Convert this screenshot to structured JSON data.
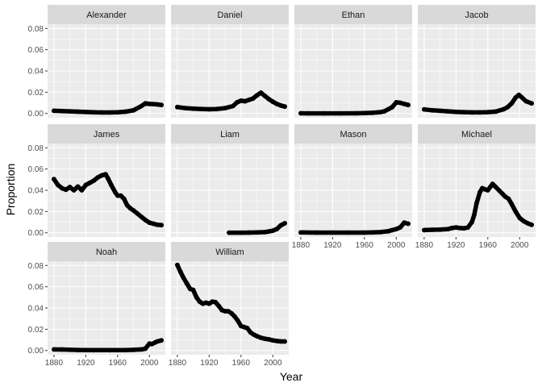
{
  "chart_data": {
    "type": "line",
    "title": "",
    "xlabel": "Year",
    "ylabel": "Proportion",
    "xlim": [
      1872,
      2020
    ],
    "ylim": [
      -0.004,
      0.084
    ],
    "x_ticks": [
      1880,
      1920,
      1960,
      2000
    ],
    "y_ticks": [
      0.0,
      0.02,
      0.04,
      0.06,
      0.08
    ],
    "y_tick_labels": [
      "0.00",
      "0.02",
      "0.04",
      "0.06",
      "0.08"
    ],
    "x_tick_labels": [
      "1880",
      "1920",
      "1960",
      "2000"
    ],
    "facet_ncol": 4,
    "grid": true,
    "panel_background": "#ebebeb",
    "strip_background": "#d9d9d9",
    "grid_color": "#ffffff",
    "line_color": "#000000",
    "series": [
      {
        "name": "Alexander",
        "points": [
          [
            1880,
            0.0025
          ],
          [
            1890,
            0.0022
          ],
          [
            1900,
            0.002
          ],
          [
            1910,
            0.0017
          ],
          [
            1920,
            0.0014
          ],
          [
            1930,
            0.0011
          ],
          [
            1940,
            0.0009
          ],
          [
            1950,
            0.0009
          ],
          [
            1960,
            0.0011
          ],
          [
            1970,
            0.0017
          ],
          [
            1980,
            0.003
          ],
          [
            1990,
            0.007
          ],
          [
            1995,
            0.0095
          ],
          [
            2000,
            0.009
          ],
          [
            2005,
            0.0088
          ],
          [
            2010,
            0.0085
          ],
          [
            2015,
            0.008
          ]
        ]
      },
      {
        "name": "Daniel",
        "points": [
          [
            1880,
            0.006
          ],
          [
            1890,
            0.005
          ],
          [
            1900,
            0.0045
          ],
          [
            1910,
            0.0042
          ],
          [
            1920,
            0.004
          ],
          [
            1930,
            0.0042
          ],
          [
            1940,
            0.005
          ],
          [
            1950,
            0.007
          ],
          [
            1955,
            0.0105
          ],
          [
            1960,
            0.012
          ],
          [
            1965,
            0.0115
          ],
          [
            1970,
            0.0128
          ],
          [
            1975,
            0.014
          ],
          [
            1980,
            0.017
          ],
          [
            1985,
            0.0195
          ],
          [
            1990,
            0.0165
          ],
          [
            1995,
            0.0135
          ],
          [
            2000,
            0.011
          ],
          [
            2005,
            0.009
          ],
          [
            2010,
            0.0075
          ],
          [
            2015,
            0.0065
          ]
        ]
      },
      {
        "name": "Ethan",
        "points": [
          [
            1880,
            0.0002
          ],
          [
            1890,
            0.0001
          ],
          [
            1910,
            0.0001
          ],
          [
            1930,
            0.0001
          ],
          [
            1950,
            0.0002
          ],
          [
            1960,
            0.0003
          ],
          [
            1970,
            0.0006
          ],
          [
            1980,
            0.0012
          ],
          [
            1985,
            0.002
          ],
          [
            1990,
            0.004
          ],
          [
            1995,
            0.006
          ],
          [
            2000,
            0.0105
          ],
          [
            2005,
            0.01
          ],
          [
            2010,
            0.009
          ],
          [
            2015,
            0.008
          ]
        ]
      },
      {
        "name": "Jacob",
        "points": [
          [
            1880,
            0.0038
          ],
          [
            1890,
            0.003
          ],
          [
            1900,
            0.0025
          ],
          [
            1910,
            0.002
          ],
          [
            1920,
            0.0015
          ],
          [
            1930,
            0.0012
          ],
          [
            1940,
            0.001
          ],
          [
            1950,
            0.001
          ],
          [
            1960,
            0.0012
          ],
          [
            1970,
            0.0018
          ],
          [
            1980,
            0.004
          ],
          [
            1985,
            0.006
          ],
          [
            1990,
            0.0095
          ],
          [
            1995,
            0.015
          ],
          [
            1999,
            0.0175
          ],
          [
            2003,
            0.015
          ],
          [
            2008,
            0.0115
          ],
          [
            2015,
            0.0095
          ]
        ]
      },
      {
        "name": "James",
        "points": [
          [
            1880,
            0.0505
          ],
          [
            1885,
            0.045
          ],
          [
            1890,
            0.042
          ],
          [
            1895,
            0.0405
          ],
          [
            1900,
            0.043
          ],
          [
            1905,
            0.04
          ],
          [
            1910,
            0.0435
          ],
          [
            1915,
            0.04
          ],
          [
            1920,
            0.045
          ],
          [
            1925,
            0.047
          ],
          [
            1930,
            0.049
          ],
          [
            1935,
            0.052
          ],
          [
            1940,
            0.054
          ],
          [
            1945,
            0.055
          ],
          [
            1948,
            0.051
          ],
          [
            1952,
            0.045
          ],
          [
            1957,
            0.038
          ],
          [
            1960,
            0.035
          ],
          [
            1964,
            0.035
          ],
          [
            1968,
            0.032
          ],
          [
            1972,
            0.026
          ],
          [
            1976,
            0.023
          ],
          [
            1980,
            0.021
          ],
          [
            1985,
            0.018
          ],
          [
            1990,
            0.015
          ],
          [
            1995,
            0.012
          ],
          [
            2000,
            0.0095
          ],
          [
            2005,
            0.0085
          ],
          [
            2010,
            0.0075
          ],
          [
            2015,
            0.0072
          ]
        ]
      },
      {
        "name": "Liam",
        "points": [
          [
            1945,
            0.0001
          ],
          [
            1960,
            0.0001
          ],
          [
            1970,
            0.0002
          ],
          [
            1980,
            0.0003
          ],
          [
            1990,
            0.0006
          ],
          [
            1995,
            0.0012
          ],
          [
            2000,
            0.002
          ],
          [
            2005,
            0.0035
          ],
          [
            2010,
            0.007
          ],
          [
            2015,
            0.009
          ]
        ]
      },
      {
        "name": "Mason",
        "points": [
          [
            1880,
            0.0003
          ],
          [
            1900,
            0.0002
          ],
          [
            1920,
            0.0002
          ],
          [
            1940,
            0.0002
          ],
          [
            1960,
            0.0002
          ],
          [
            1970,
            0.0003
          ],
          [
            1980,
            0.0006
          ],
          [
            1990,
            0.0015
          ],
          [
            1995,
            0.0025
          ],
          [
            2000,
            0.0035
          ],
          [
            2005,
            0.005
          ],
          [
            2010,
            0.0095
          ],
          [
            2015,
            0.0085
          ]
        ]
      },
      {
        "name": "Michael",
        "points": [
          [
            1880,
            0.0025
          ],
          [
            1890,
            0.0028
          ],
          [
            1900,
            0.003
          ],
          [
            1910,
            0.0035
          ],
          [
            1915,
            0.0045
          ],
          [
            1920,
            0.005
          ],
          [
            1925,
            0.0045
          ],
          [
            1930,
            0.0042
          ],
          [
            1935,
            0.005
          ],
          [
            1940,
            0.01
          ],
          [
            1943,
            0.017
          ],
          [
            1946,
            0.028
          ],
          [
            1950,
            0.038
          ],
          [
            1953,
            0.042
          ],
          [
            1956,
            0.041
          ],
          [
            1960,
            0.04
          ],
          [
            1963,
            0.043
          ],
          [
            1966,
            0.046
          ],
          [
            1970,
            0.043
          ],
          [
            1974,
            0.04
          ],
          [
            1978,
            0.037
          ],
          [
            1982,
            0.034
          ],
          [
            1986,
            0.032
          ],
          [
            1990,
            0.027
          ],
          [
            1995,
            0.02
          ],
          [
            2000,
            0.014
          ],
          [
            2005,
            0.011
          ],
          [
            2010,
            0.009
          ],
          [
            2015,
            0.0075
          ]
        ]
      },
      {
        "name": "Noah",
        "points": [
          [
            1880,
            0.001
          ],
          [
            1890,
            0.0009
          ],
          [
            1900,
            0.0007
          ],
          [
            1910,
            0.0005
          ],
          [
            1920,
            0.0004
          ],
          [
            1930,
            0.0003
          ],
          [
            1940,
            0.0003
          ],
          [
            1950,
            0.0003
          ],
          [
            1960,
            0.0003
          ],
          [
            1970,
            0.0004
          ],
          [
            1980,
            0.0006
          ],
          [
            1990,
            0.001
          ],
          [
            1995,
            0.0018
          ],
          [
            2000,
            0.0065
          ],
          [
            2003,
            0.006
          ],
          [
            2007,
            0.0075
          ],
          [
            2010,
            0.0085
          ],
          [
            2015,
            0.0095
          ]
        ]
      },
      {
        "name": "William",
        "points": [
          [
            1880,
            0.0805
          ],
          [
            1884,
            0.074
          ],
          [
            1888,
            0.068
          ],
          [
            1892,
            0.063
          ],
          [
            1896,
            0.058
          ],
          [
            1900,
            0.057
          ],
          [
            1904,
            0.05
          ],
          [
            1908,
            0.046
          ],
          [
            1912,
            0.044
          ],
          [
            1916,
            0.045
          ],
          [
            1920,
            0.044
          ],
          [
            1924,
            0.046
          ],
          [
            1928,
            0.0455
          ],
          [
            1932,
            0.042
          ],
          [
            1936,
            0.038
          ],
          [
            1940,
            0.037
          ],
          [
            1944,
            0.037
          ],
          [
            1948,
            0.035
          ],
          [
            1952,
            0.032
          ],
          [
            1956,
            0.028
          ],
          [
            1960,
            0.023
          ],
          [
            1964,
            0.022
          ],
          [
            1968,
            0.021
          ],
          [
            1972,
            0.017
          ],
          [
            1976,
            0.015
          ],
          [
            1980,
            0.0135
          ],
          [
            1985,
            0.012
          ],
          [
            1990,
            0.011
          ],
          [
            1995,
            0.0105
          ],
          [
            2000,
            0.0095
          ],
          [
            2005,
            0.009
          ],
          [
            2010,
            0.0085
          ],
          [
            2015,
            0.0085
          ]
        ]
      }
    ]
  }
}
